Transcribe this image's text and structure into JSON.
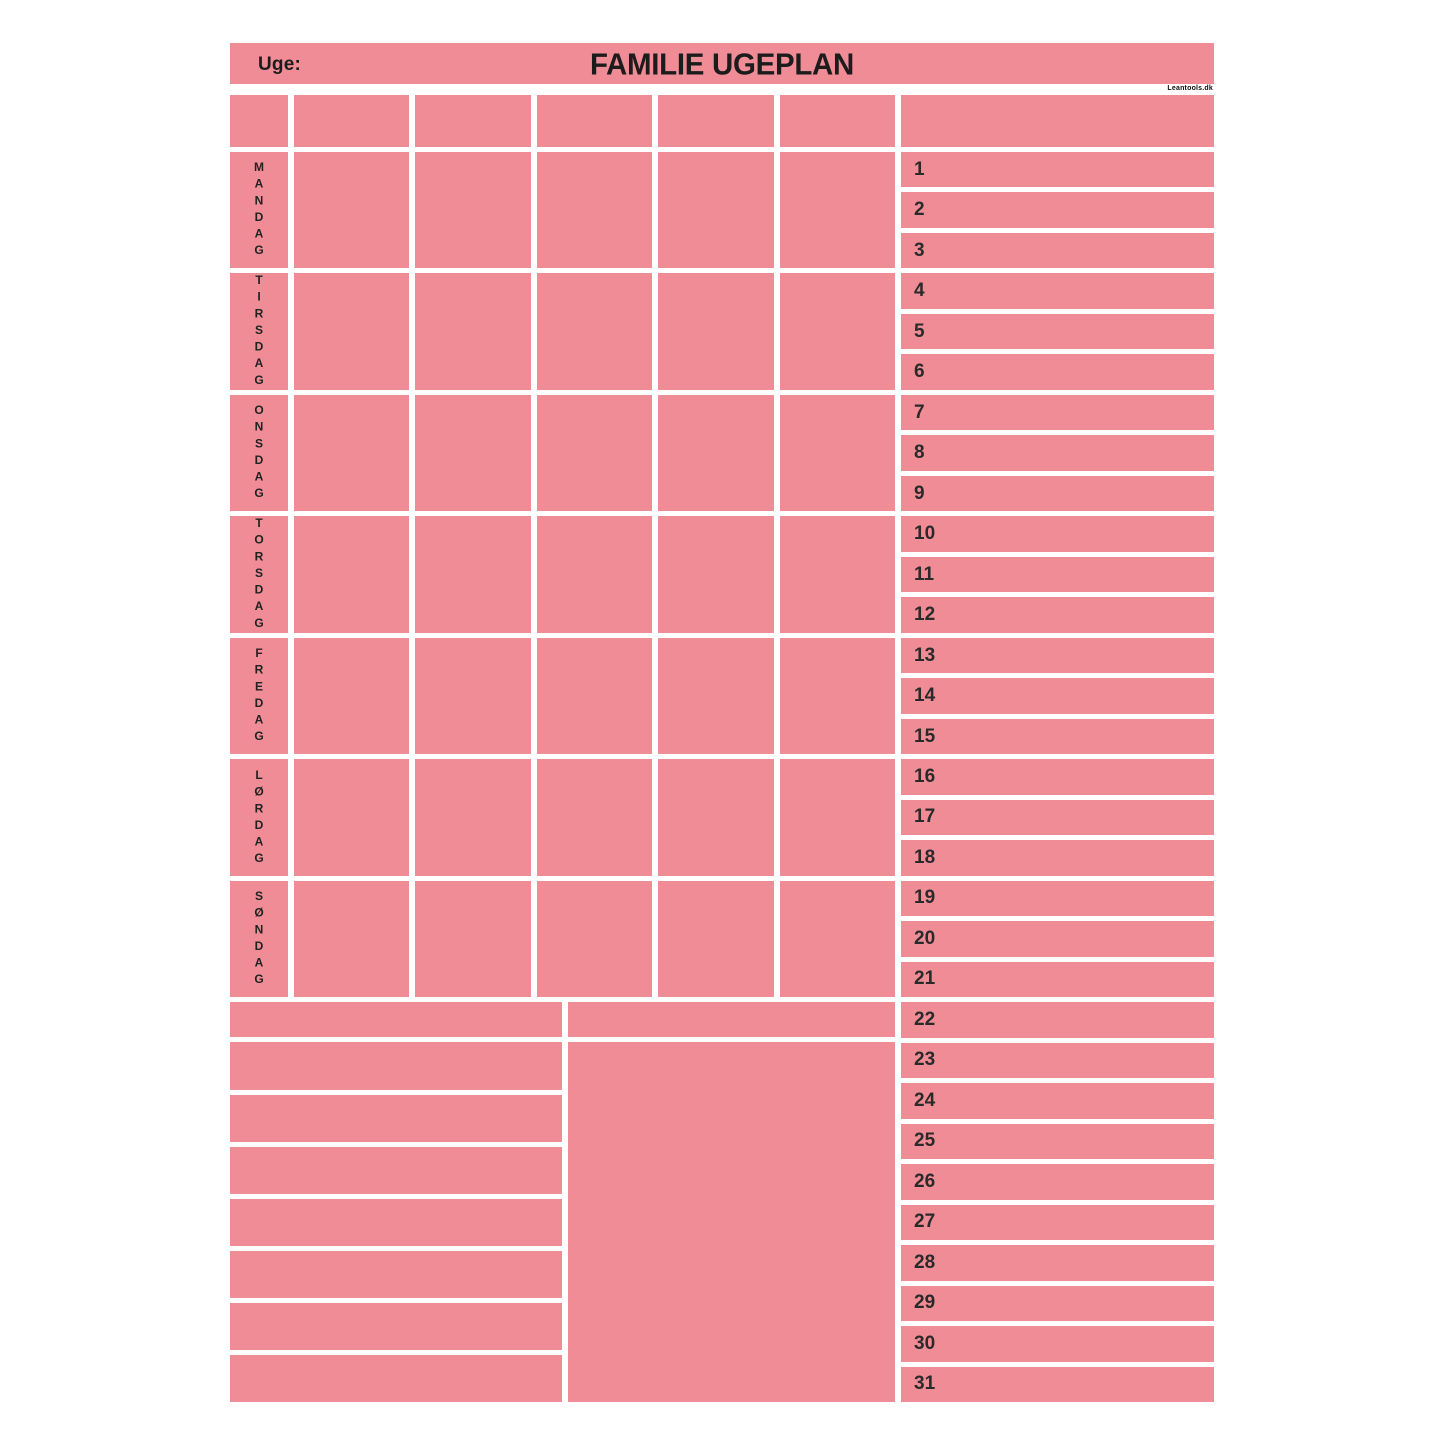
{
  "header": {
    "week_label": "Uge:",
    "title": "FAMILIE UGEPLAN",
    "brand": "Leantools.dk"
  },
  "calendar": {
    "days": [
      "MANDAG",
      "TIRSDAG",
      "ONSDAG",
      "TORSDAG",
      "FREDAG",
      "LØRDAG",
      "SØNDAG"
    ],
    "columns_per_day": 5,
    "rows_per_day": 3,
    "day_numbers": [
      "1",
      "2",
      "3",
      "4",
      "5",
      "6",
      "7",
      "8",
      "9",
      "10",
      "11",
      "12",
      "13",
      "14",
      "15",
      "16",
      "17",
      "18",
      "19",
      "20",
      "21",
      "22",
      "23",
      "24",
      "25",
      "26",
      "27",
      "28",
      "29",
      "30",
      "31"
    ]
  },
  "notes": {
    "bottom_left_rows": 8,
    "has_bottom_middle_box": true
  },
  "colors": {
    "cell_pink": "#F08C95",
    "background": "#FFFFFF",
    "text": "#1C1C1C"
  }
}
